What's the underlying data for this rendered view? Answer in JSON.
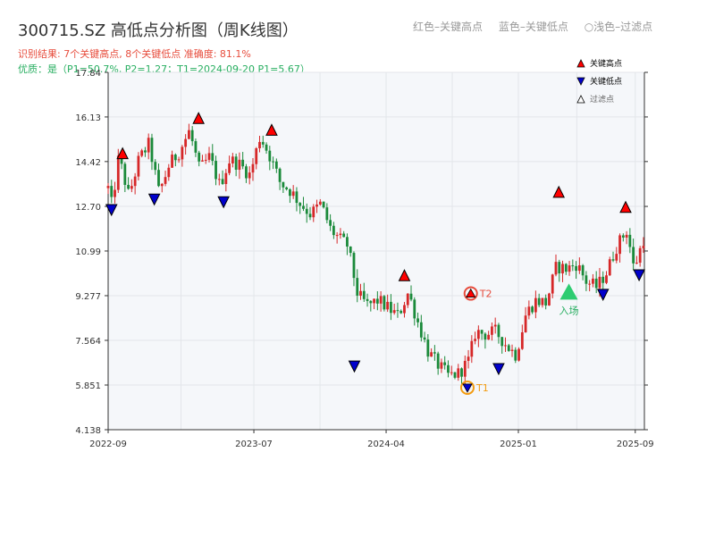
{
  "header": {
    "title": "300715.SZ 高低点分析图（周K线图）",
    "legend_red": "红色–关键高点",
    "legend_blue": "蓝色–关键低点",
    "legend_filter": "○浅色–过滤点",
    "result_line": "识别结果: 7个关键高点, 8个关键低点  准确度: 81.1%",
    "quality_line": "优质：是（P1=50.7%, P2=1.27；T1=2024-09-20 P1=5.67）"
  },
  "chart_data": {
    "type": "candlestick",
    "y_ticks": [
      "4.138",
      "5.851",
      "7.564",
      "9.277",
      "10.99",
      "12.70",
      "14.42",
      "16.13",
      "17.84"
    ],
    "ylim": [
      4.138,
      17.84
    ],
    "x_tick_labels": [
      "2022-09",
      "2023-07",
      "2024-04",
      "2025-01",
      "2025-09"
    ],
    "x_tick_dates": [
      "2022-09-01",
      "2023-07-01",
      "2024-04-01",
      "2025-01-01",
      "2025-09-01"
    ],
    "xlim": [
      "2022-09-01",
      "2025-09-20"
    ],
    "up_color": "#d62728",
    "down_color": "#1a8a3a",
    "close_path": [
      [
        "2022-09-01",
        13.4
      ],
      [
        "2022-09-09",
        12.7
      ],
      [
        "2022-09-23",
        14.6
      ],
      [
        "2022-10-14",
        13.1
      ],
      [
        "2022-11-04",
        14.5
      ],
      [
        "2022-11-25",
        15.1
      ],
      [
        "2022-12-16",
        13.2
      ],
      [
        "2023-01-06",
        14.3
      ],
      [
        "2023-01-27",
        14.8
      ],
      [
        "2023-02-17",
        15.6
      ],
      [
        "2023-03-10",
        14.1
      ],
      [
        "2023-03-31",
        14.6
      ],
      [
        "2023-04-21",
        13.5
      ],
      [
        "2023-05-12",
        14.5
      ],
      [
        "2023-06-02",
        14.3
      ],
      [
        "2023-06-23",
        13.9
      ],
      [
        "2023-07-14",
        15.4
      ],
      [
        "2023-08-04",
        14.6
      ],
      [
        "2023-08-25",
        13.6
      ],
      [
        "2023-09-15",
        13.3
      ],
      [
        "2023-10-06",
        12.8
      ],
      [
        "2023-10-27",
        12.4
      ],
      [
        "2023-11-17",
        12.8
      ],
      [
        "2023-12-08",
        11.8
      ],
      [
        "2023-12-29",
        11.4
      ],
      [
        "2024-01-12",
        11.2
      ],
      [
        "2024-02-02",
        9.3
      ],
      [
        "2024-02-23",
        8.9
      ],
      [
        "2024-03-15",
        9.1
      ],
      [
        "2024-04-05",
        8.8
      ],
      [
        "2024-04-26",
        8.5
      ],
      [
        "2024-05-17",
        9.4
      ],
      [
        "2024-06-07",
        8.2
      ],
      [
        "2024-06-28",
        7.1
      ],
      [
        "2024-07-19",
        6.6
      ],
      [
        "2024-08-09",
        6.2
      ],
      [
        "2024-08-30",
        6.3
      ],
      [
        "2024-09-20",
        6.8
      ],
      [
        "2024-10-04",
        7.9
      ],
      [
        "2024-10-25",
        7.8
      ],
      [
        "2024-11-15",
        7.9
      ],
      [
        "2024-12-06",
        7.4
      ],
      [
        "2024-12-27",
        7.0
      ],
      [
        "2025-01-17",
        8.6
      ],
      [
        "2025-02-07",
        9.1
      ],
      [
        "2025-02-28",
        9.0
      ],
      [
        "2025-03-21",
        10.4
      ],
      [
        "2025-04-11",
        10.3
      ],
      [
        "2025-05-02",
        10.5
      ],
      [
        "2025-05-23",
        9.8
      ],
      [
        "2025-06-13",
        9.6
      ],
      [
        "2025-07-04",
        10.2
      ],
      [
        "2025-07-25",
        11.2
      ],
      [
        "2025-08-15",
        11.8
      ],
      [
        "2025-08-29",
        10.3
      ],
      [
        "2025-09-19",
        11.5
      ]
    ],
    "key_highs": [
      {
        "date": "2022-10-01",
        "price": 14.7
      },
      {
        "date": "2023-03-08",
        "price": 16.05
      },
      {
        "date": "2023-08-07",
        "price": 15.6
      },
      {
        "date": "2024-05-09",
        "price": 10.02
      },
      {
        "date": "2025-03-26",
        "price": 13.22
      },
      {
        "date": "2025-08-12",
        "price": 12.64
      }
    ],
    "key_lows": [
      {
        "date": "2022-09-08",
        "price": 12.6
      },
      {
        "date": "2022-12-06",
        "price": 13.0
      },
      {
        "date": "2023-04-29",
        "price": 12.9
      },
      {
        "date": "2024-01-26",
        "price": 6.6
      },
      {
        "date": "2024-11-21",
        "price": 6.5
      },
      {
        "date": "2025-06-26",
        "price": 9.35
      },
      {
        "date": "2025-09-09",
        "price": 10.1
      }
    ],
    "t1": {
      "label": "T1",
      "date": "2024-09-17",
      "price": 5.75
    },
    "t2": {
      "label": "T2",
      "date": "2024-09-24",
      "price": 9.36
    },
    "entry": {
      "label": "入场",
      "date": "2025-04-16",
      "price": 9.4
    },
    "legend": [
      {
        "label": "关键高点",
        "color": "#ff0000"
      },
      {
        "label": "关键低点",
        "color": "#0000ff"
      },
      {
        "label": "过滤点",
        "color": "#999999"
      }
    ]
  }
}
